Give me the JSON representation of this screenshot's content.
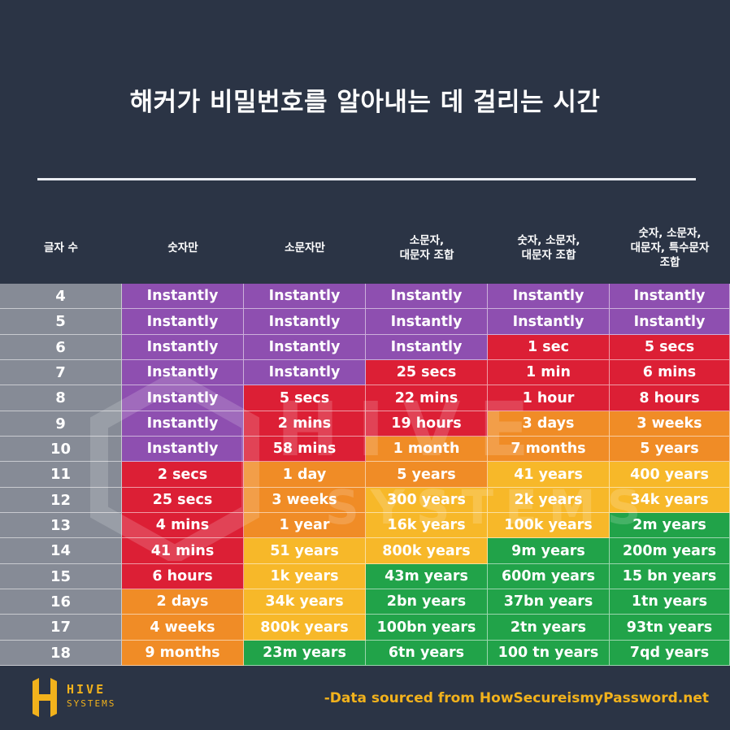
{
  "title": "해커가 비밀번호를 알아내는 데 걸리는 시간",
  "columns": [
    "글자 수",
    "숫자만",
    "소문자만",
    "소문자,\n대문자 조합",
    "숫자, 소문자,\n대문자 조합",
    "숫자, 소문자,\n대문자, 특수문자\n조합"
  ],
  "colors": {
    "purple": "#8e4fb0",
    "red": "#dc1f35",
    "orange": "#f08c26",
    "yellow": "#f7b829",
    "green": "#21a349",
    "label": "#868b96"
  },
  "chart_data": {
    "type": "table",
    "title": "해커가 비밀번호를 알아내는 데 걸리는 시간",
    "row_header": "글자 수",
    "rows": [
      {
        "chars": "4",
        "cells": [
          [
            "Instantly",
            "purple"
          ],
          [
            "Instantly",
            "purple"
          ],
          [
            "Instantly",
            "purple"
          ],
          [
            "Instantly",
            "purple"
          ],
          [
            "Instantly",
            "purple"
          ]
        ]
      },
      {
        "chars": "5",
        "cells": [
          [
            "Instantly",
            "purple"
          ],
          [
            "Instantly",
            "purple"
          ],
          [
            "Instantly",
            "purple"
          ],
          [
            "Instantly",
            "purple"
          ],
          [
            "Instantly",
            "purple"
          ]
        ]
      },
      {
        "chars": "6",
        "cells": [
          [
            "Instantly",
            "purple"
          ],
          [
            "Instantly",
            "purple"
          ],
          [
            "Instantly",
            "purple"
          ],
          [
            "1 sec",
            "red"
          ],
          [
            "5 secs",
            "red"
          ]
        ]
      },
      {
        "chars": "7",
        "cells": [
          [
            "Instantly",
            "purple"
          ],
          [
            "Instantly",
            "purple"
          ],
          [
            "25 secs",
            "red"
          ],
          [
            "1 min",
            "red"
          ],
          [
            "6 mins",
            "red"
          ]
        ]
      },
      {
        "chars": "8",
        "cells": [
          [
            "Instantly",
            "purple"
          ],
          [
            "5 secs",
            "red"
          ],
          [
            "22 mins",
            "red"
          ],
          [
            "1 hour",
            "red"
          ],
          [
            "8 hours",
            "red"
          ]
        ]
      },
      {
        "chars": "9",
        "cells": [
          [
            "Instantly",
            "purple"
          ],
          [
            "2 mins",
            "red"
          ],
          [
            "19 hours",
            "red"
          ],
          [
            "3 days",
            "orange"
          ],
          [
            "3 weeks",
            "orange"
          ]
        ]
      },
      {
        "chars": "10",
        "cells": [
          [
            "Instantly",
            "purple"
          ],
          [
            "58 mins",
            "red"
          ],
          [
            "1 month",
            "orange"
          ],
          [
            "7 months",
            "orange"
          ],
          [
            "5 years",
            "orange"
          ]
        ]
      },
      {
        "chars": "11",
        "cells": [
          [
            "2 secs",
            "red"
          ],
          [
            "1 day",
            "orange"
          ],
          [
            "5 years",
            "orange"
          ],
          [
            "41 years",
            "yellow"
          ],
          [
            "400 years",
            "yellow"
          ]
        ]
      },
      {
        "chars": "12",
        "cells": [
          [
            "25 secs",
            "red"
          ],
          [
            "3 weeks",
            "orange"
          ],
          [
            "300 years",
            "yellow"
          ],
          [
            "2k years",
            "yellow"
          ],
          [
            "34k years",
            "yellow"
          ]
        ]
      },
      {
        "chars": "13",
        "cells": [
          [
            "4 mins",
            "red"
          ],
          [
            "1 year",
            "orange"
          ],
          [
            "16k years",
            "yellow"
          ],
          [
            "100k years",
            "yellow"
          ],
          [
            "2m years",
            "green"
          ]
        ]
      },
      {
        "chars": "14",
        "cells": [
          [
            "41 mins",
            "red"
          ],
          [
            "51 years",
            "yellow"
          ],
          [
            "800k years",
            "yellow"
          ],
          [
            "9m years",
            "green"
          ],
          [
            "200m years",
            "green"
          ]
        ]
      },
      {
        "chars": "15",
        "cells": [
          [
            "6 hours",
            "red"
          ],
          [
            "1k years",
            "yellow"
          ],
          [
            "43m years",
            "green"
          ],
          [
            "600m years",
            "green"
          ],
          [
            "15 bn years",
            "green"
          ]
        ]
      },
      {
        "chars": "16",
        "cells": [
          [
            "2 days",
            "orange"
          ],
          [
            "34k years",
            "yellow"
          ],
          [
            "2bn years",
            "green"
          ],
          [
            "37bn years",
            "green"
          ],
          [
            "1tn years",
            "green"
          ]
        ]
      },
      {
        "chars": "17",
        "cells": [
          [
            "4 weeks",
            "orange"
          ],
          [
            "800k years",
            "yellow"
          ],
          [
            "100bn years",
            "green"
          ],
          [
            "2tn years",
            "green"
          ],
          [
            "93tn years",
            "green"
          ]
        ]
      },
      {
        "chars": "18",
        "cells": [
          [
            "9 months",
            "orange"
          ],
          [
            "23m years",
            "green"
          ],
          [
            "6tn years",
            "green"
          ],
          [
            "100 tn years",
            "green"
          ],
          [
            "7qd years",
            "green"
          ]
        ]
      }
    ]
  },
  "watermark": {
    "line1": "HIVE",
    "line2": "SYSTEMS"
  },
  "footer": {
    "logo_name": "HIVE",
    "logo_sub": "SYSTEMS",
    "source": "-Data sourced from HowSecureismyPassword.net"
  }
}
